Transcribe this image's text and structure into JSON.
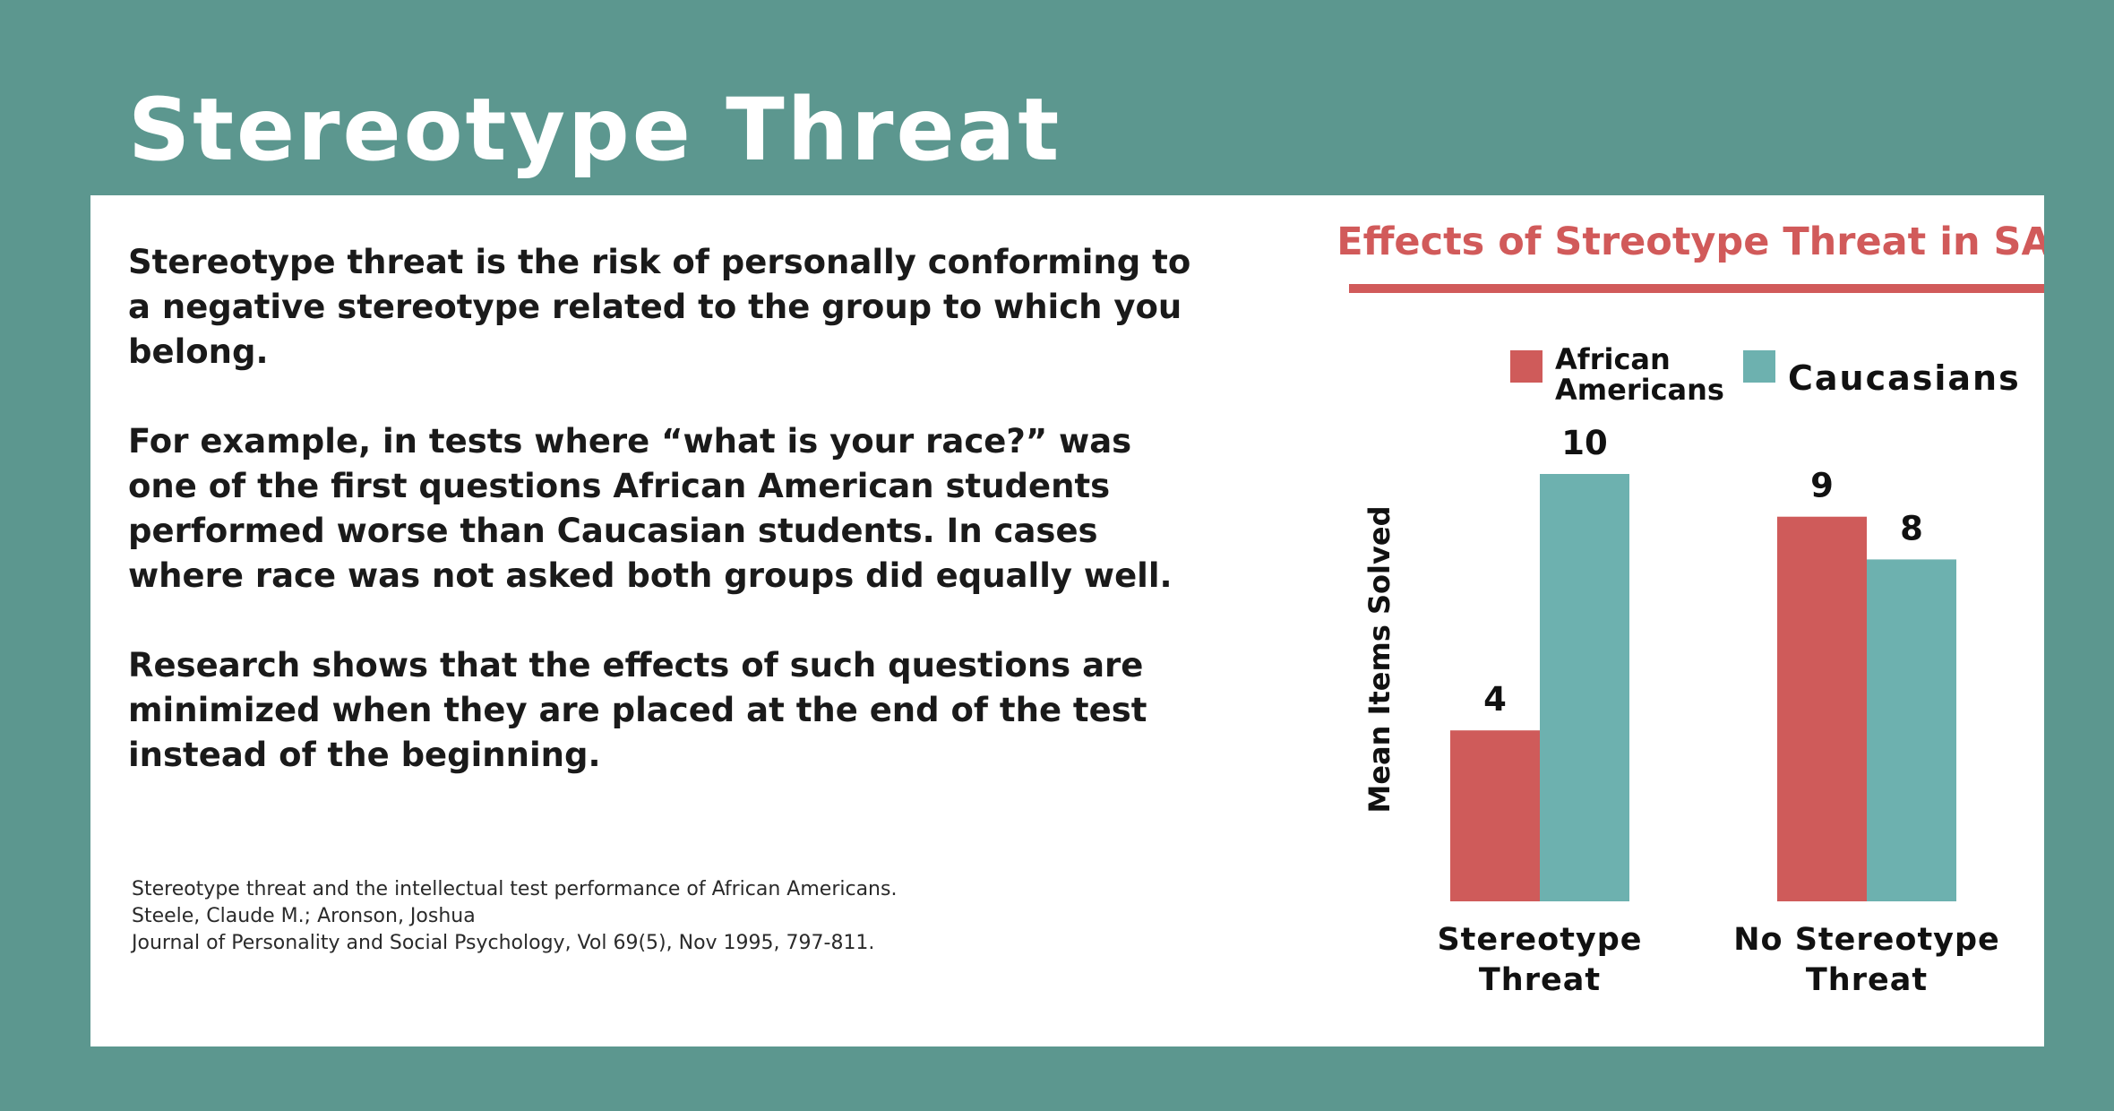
{
  "title": "Stereotype Threat",
  "paragraphs": [
    "Stereotype threat is the risk of personally conforming to a negative stereotype related to the group to which you belong.",
    "For example, in tests where “what is your race?” was one of the first questions African American students performed worse than Caucasian students. In cases where race was not asked both groups did equally well.",
    "Research shows that the effects of such questions are minimized when they are placed at the end of the test instead of the beginning."
  ],
  "citation": [
    "Stereotype threat and the intellectual test performance of African Americans.",
    "Steele, Claude M.; Aronson, Joshua",
    "Journal of Personality and Social Psychology, Vol 69(5), Nov 1995, 797-811."
  ],
  "colors": {
    "background": "#5c978f",
    "card": "#ffffff",
    "accent": "#d15a5a",
    "african_americans": "#cf5b5a",
    "caucasians": "#6db1af"
  },
  "chart_data": {
    "type": "bar",
    "title": "Effects of Streotype Threat in SAT",
    "ylabel": "Mean Items Solved",
    "xlabel": "",
    "categories": [
      [
        "Stereotype",
        "Threat"
      ],
      [
        "No Stereotype",
        "Threat"
      ]
    ],
    "series": [
      {
        "name": [
          "African",
          "Americans"
        ],
        "values": [
          4,
          9
        ],
        "color": "#cf5b5a"
      },
      {
        "name": [
          "Caucasians"
        ],
        "values": [
          10,
          8
        ],
        "color": "#6db1af"
      }
    ],
    "data_labels": [
      [
        "4",
        "9"
      ],
      [
        "10",
        "8"
      ]
    ],
    "ylim": [
      0,
      10
    ],
    "grid": false,
    "legend_position": "top"
  }
}
